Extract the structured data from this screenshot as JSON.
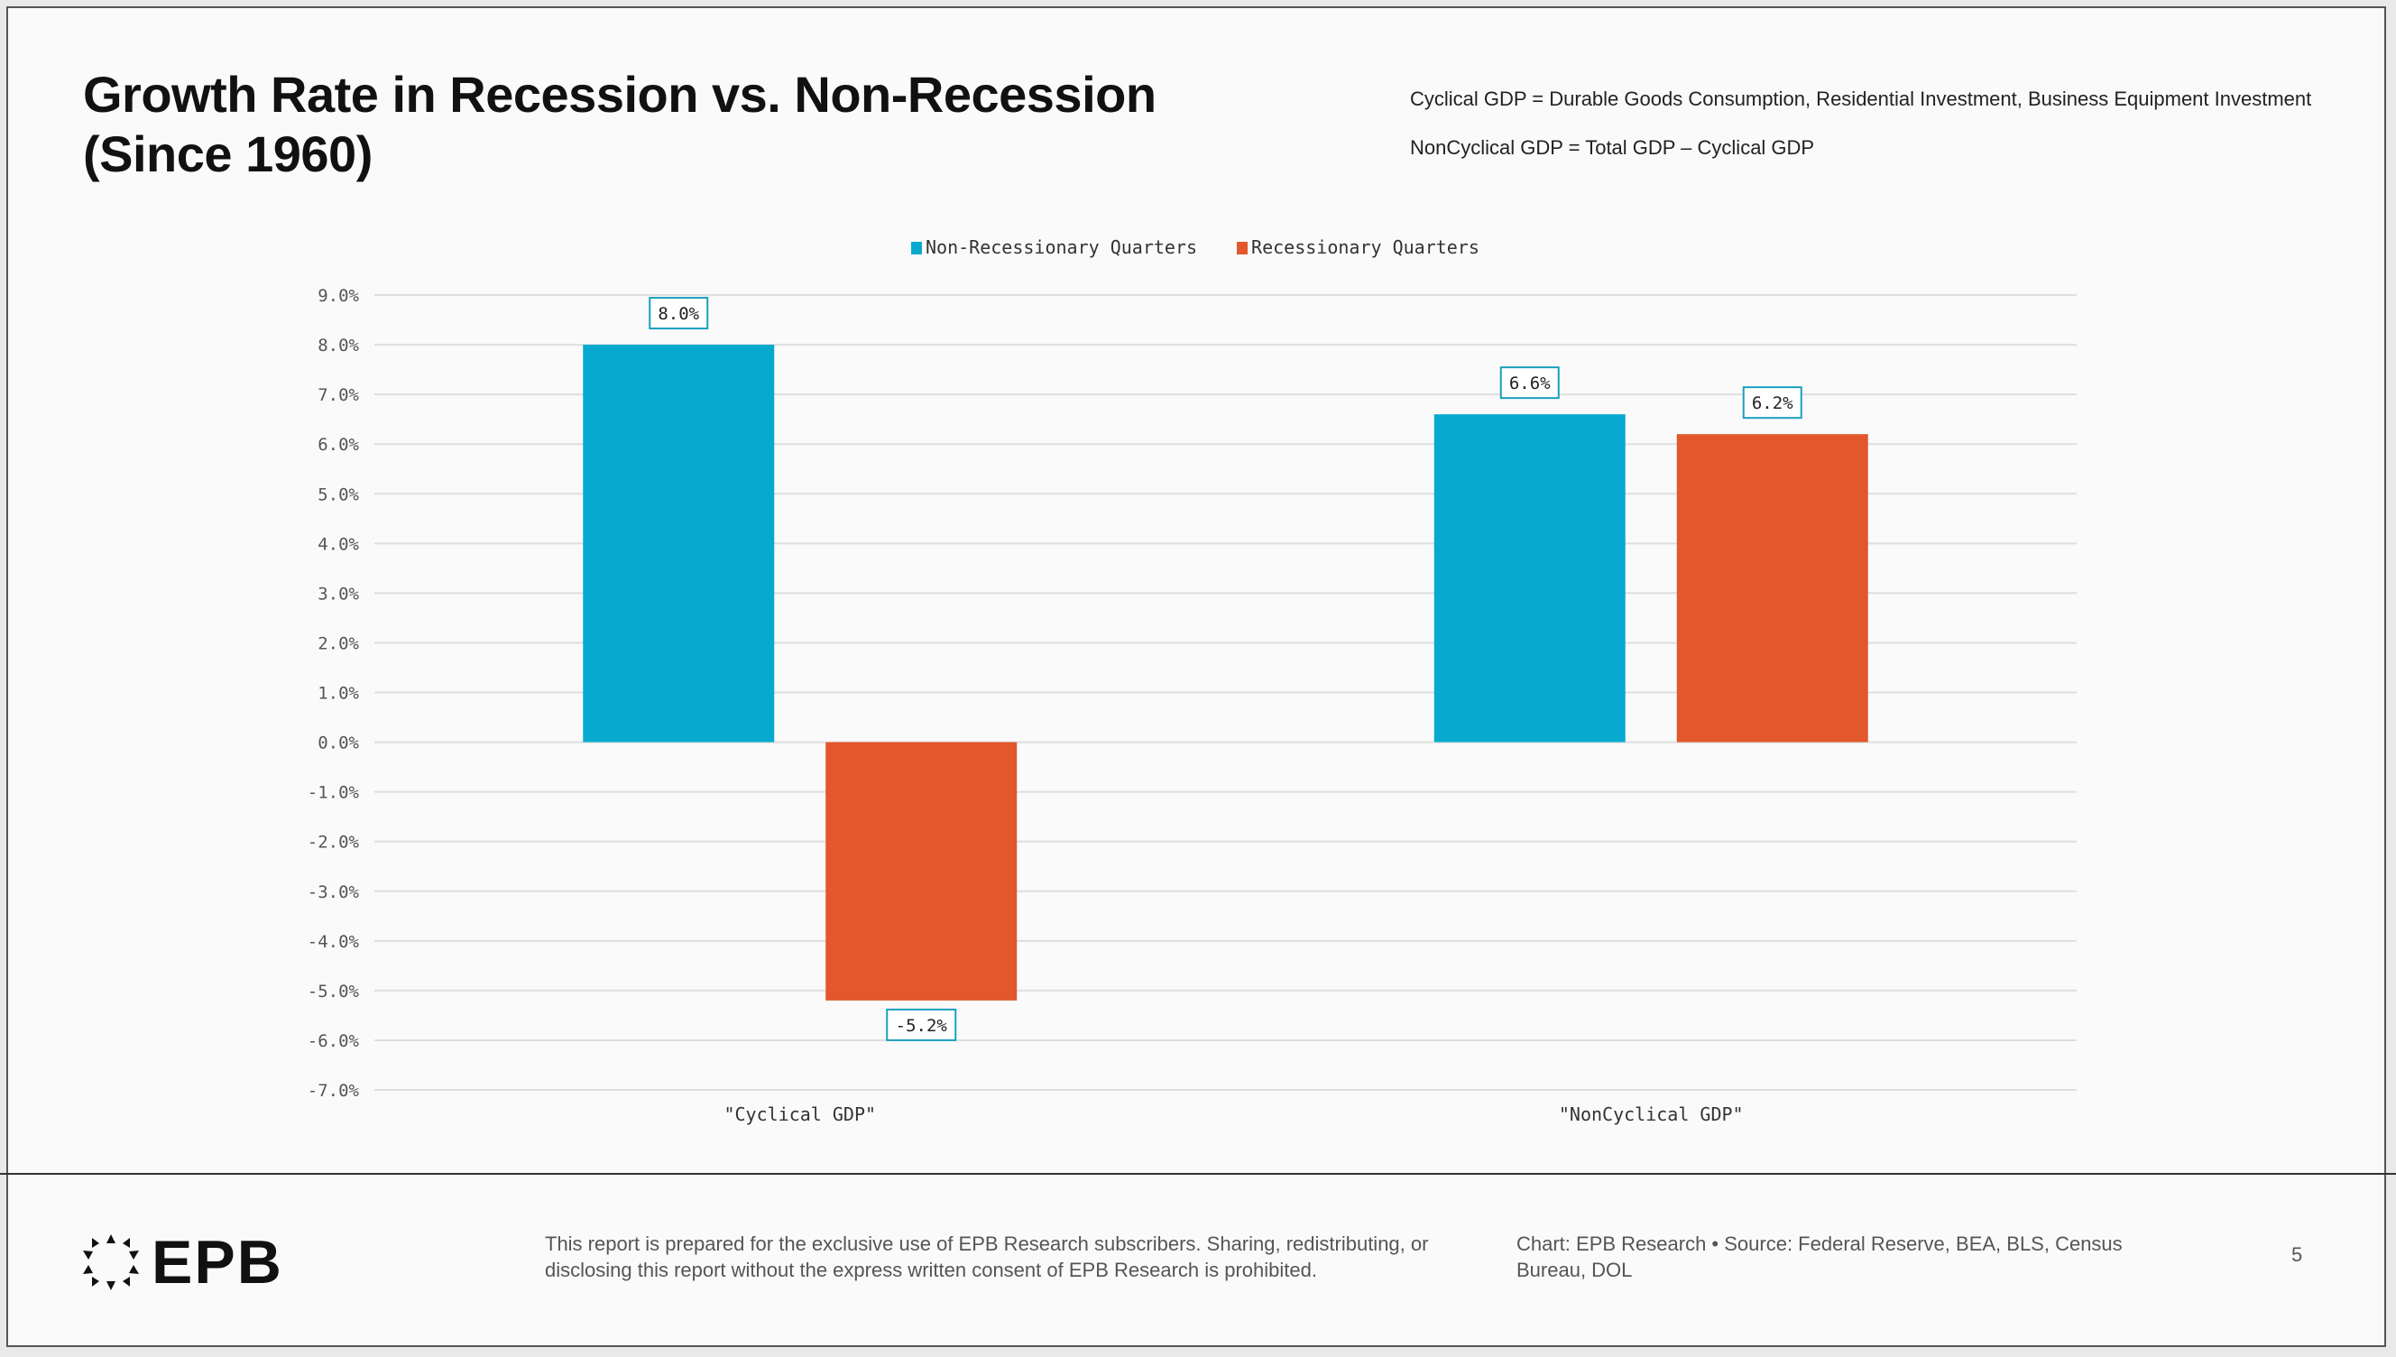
{
  "header": {
    "title_line1": "Growth Rate in Recession vs. Non-Recession",
    "title_line2": "(Since 1960)",
    "note_line1": "Cyclical GDP = Durable Goods Consumption, Residential Investment, Business Equipment Investment",
    "note_line2": "NonCyclical GDP = Total GDP – Cyclical GDP"
  },
  "chart_data": {
    "type": "bar",
    "categories": [
      "\"Cyclical GDP\"",
      "\"NonCyclical GDP\""
    ],
    "series": [
      {
        "name": "Non-Recessionary Quarters",
        "values": [
          8.0,
          6.6
        ],
        "labels": [
          "8.0%",
          "6.6%"
        ],
        "color": "#08a9cf"
      },
      {
        "name": "Recessionary Quarters",
        "values": [
          -5.2,
          6.2
        ],
        "labels": [
          "-5.2%",
          "6.2%"
        ],
        "color": "#e2582c"
      }
    ],
    "ylim": [
      -7,
      9
    ],
    "yticks": [
      "9.0%",
      "8.0%",
      "7.0%",
      "6.0%",
      "5.0%",
      "4.0%",
      "3.0%",
      "2.0%",
      "1.0%",
      "0.0%",
      "-1.0%",
      "-2.0%",
      "-3.0%",
      "-4.0%",
      "-5.0%",
      "-6.0%",
      "-7.0%"
    ],
    "ytick_values": [
      9,
      8,
      7,
      6,
      5,
      4,
      3,
      2,
      1,
      0,
      -1,
      -2,
      -3,
      -4,
      -5,
      -6,
      -7
    ],
    "grid": true,
    "legend": "top-center"
  },
  "footer": {
    "logo_text": "EPB",
    "disclaimer": "This report is prepared for the exclusive use of EPB Research subscribers. Sharing, redistributing, or disclosing this report without the express written consent of EPB Research is prohibited.",
    "source": "Chart: EPB Research  •  Source: Federal Reserve, BEA, BLS, Census Bureau, DOL",
    "page_number": "5"
  }
}
